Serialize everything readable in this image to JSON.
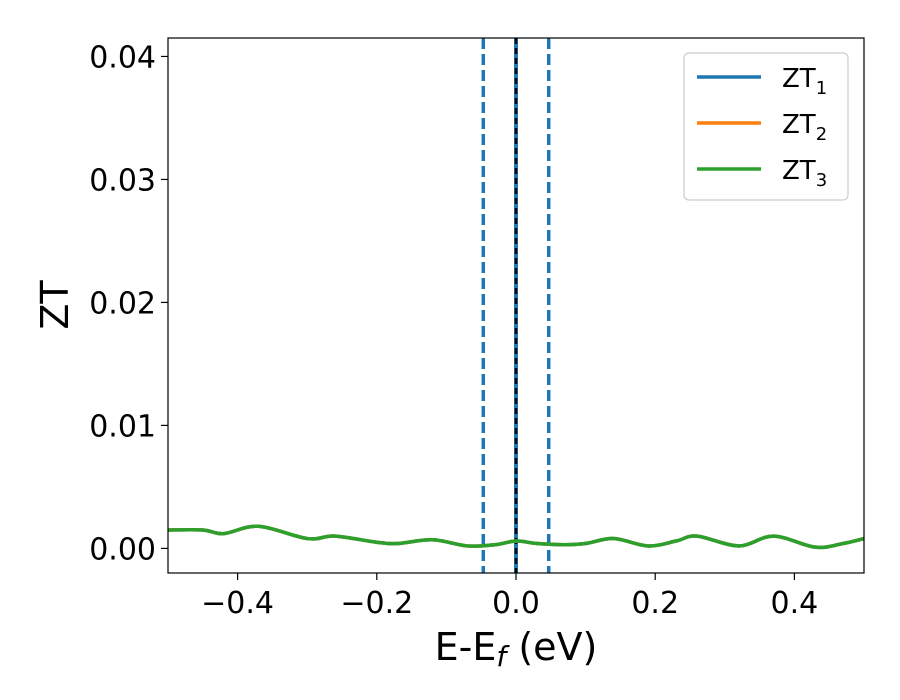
{
  "chart_data": {
    "type": "line",
    "xlabel": "E-E",
    "xlabel_sub": "f",
    "xlabel_unit": " (eV)",
    "ylabel": "ZT",
    "xlim": [
      -0.5,
      0.5
    ],
    "ylim": [
      -0.002,
      0.0415
    ],
    "x_ticks": [
      -0.4,
      -0.2,
      0.0,
      0.2,
      0.4
    ],
    "x_tick_labels": [
      "−0.4",
      "−0.2",
      "0.0",
      "0.2",
      "0.4"
    ],
    "y_ticks": [
      0.0,
      0.01,
      0.02,
      0.03,
      0.04
    ],
    "y_tick_labels": [
      "0.00",
      "0.01",
      "0.02",
      "0.03",
      "0.04"
    ],
    "grid": false,
    "legend_position": "top-right",
    "vertical_lines": [
      {
        "x": -0.047,
        "style": "dashed",
        "color": "#1f77b4"
      },
      {
        "x": 0.047,
        "style": "dashed",
        "color": "#1f77b4"
      },
      {
        "x": 0.0,
        "style": "solid",
        "color": "#1f77b4"
      },
      {
        "x": 0.0,
        "style": "dashed",
        "color": "#000000"
      }
    ],
    "series": [
      {
        "name": "ZT",
        "sub": "1",
        "color": "#1f77b4",
        "x": [
          -0.5,
          -0.45,
          -0.42,
          -0.37,
          -0.3,
          -0.26,
          -0.2,
          -0.17,
          -0.12,
          -0.07,
          -0.03,
          0.0,
          0.03,
          0.07,
          0.1,
          0.14,
          0.19,
          0.23,
          0.26,
          0.32,
          0.37,
          0.43,
          0.47,
          0.5
        ],
        "y": [
          0.0015,
          0.0015,
          0.0012,
          0.0018,
          0.0008,
          0.001,
          0.0005,
          0.0004,
          0.0007,
          0.0002,
          0.0003,
          0.0006,
          0.0004,
          0.0003,
          0.0004,
          0.0008,
          0.0002,
          0.0006,
          0.001,
          0.0002,
          0.001,
          0.0001,
          0.0004,
          0.0008
        ]
      },
      {
        "name": "ZT",
        "sub": "2",
        "color": "#ff7f0e",
        "x": [
          -0.5,
          -0.45,
          -0.42,
          -0.37,
          -0.3,
          -0.26,
          -0.2,
          -0.17,
          -0.12,
          -0.07,
          -0.03,
          0.0,
          0.03,
          0.07,
          0.1,
          0.14,
          0.19,
          0.23,
          0.26,
          0.32,
          0.37,
          0.43,
          0.47,
          0.5
        ],
        "y": [
          0.0015,
          0.0015,
          0.0012,
          0.0018,
          0.0008,
          0.001,
          0.0005,
          0.0004,
          0.0007,
          0.0002,
          0.0003,
          0.0006,
          0.0004,
          0.0003,
          0.0004,
          0.0008,
          0.0002,
          0.0006,
          0.001,
          0.0002,
          0.001,
          0.0001,
          0.0004,
          0.0008
        ]
      },
      {
        "name": "ZT",
        "sub": "3",
        "color": "#2ca02c",
        "x": [
          -0.5,
          -0.45,
          -0.42,
          -0.37,
          -0.3,
          -0.26,
          -0.2,
          -0.17,
          -0.12,
          -0.07,
          -0.03,
          0.0,
          0.03,
          0.07,
          0.1,
          0.14,
          0.19,
          0.23,
          0.26,
          0.32,
          0.37,
          0.43,
          0.47,
          0.5
        ],
        "y": [
          0.0015,
          0.0015,
          0.0012,
          0.0018,
          0.0008,
          0.001,
          0.0005,
          0.0004,
          0.0007,
          0.0002,
          0.0003,
          0.0006,
          0.0004,
          0.0003,
          0.0004,
          0.0008,
          0.0002,
          0.0006,
          0.001,
          0.0002,
          0.001,
          0.0001,
          0.0004,
          0.0008
        ]
      }
    ]
  }
}
